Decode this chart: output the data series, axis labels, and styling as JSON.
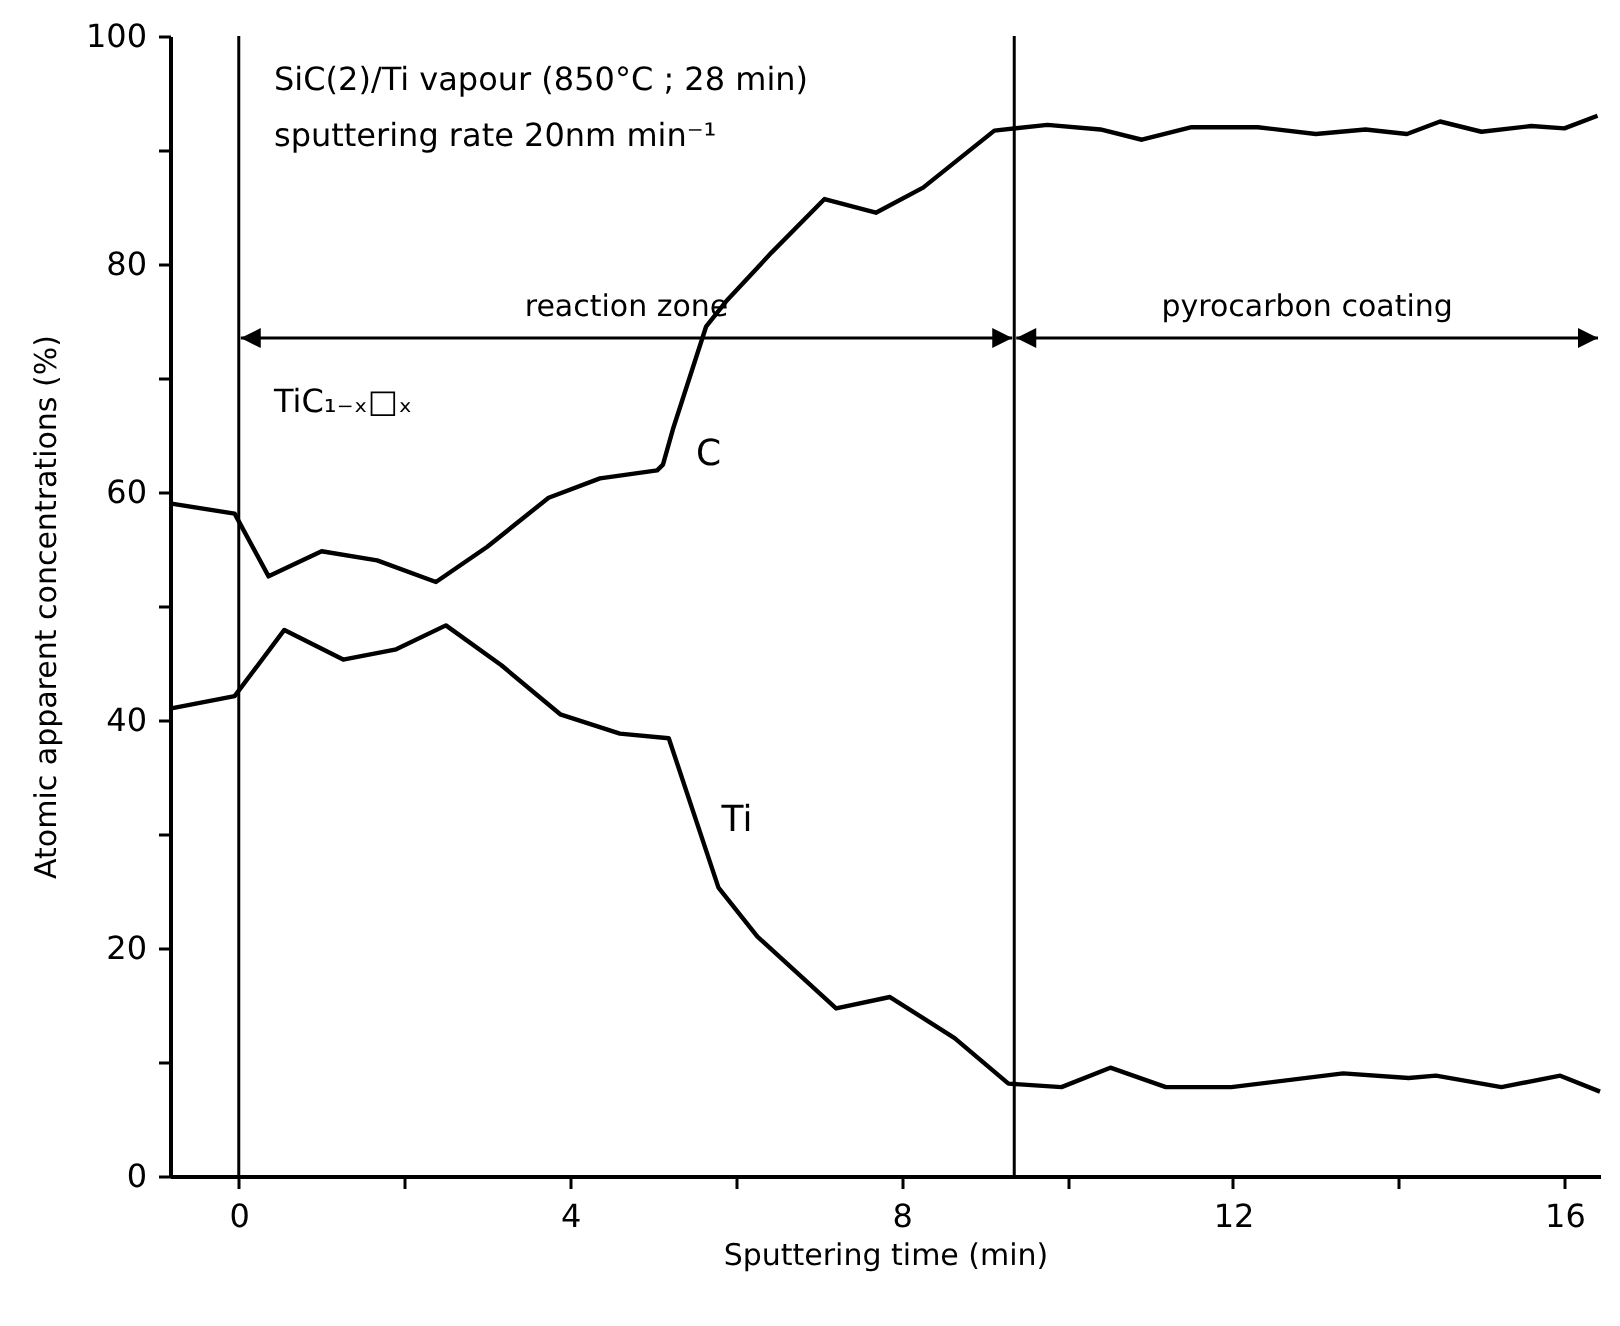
{
  "chart_data": {
    "type": "line",
    "xlabel": "Sputtering time (min)",
    "ylabel": "Atomic apparent concentrations (%)",
    "annotations": [
      "SiC(2)/Ti vapour (850°C ; 28 min)",
      "sputtering rate  20nm min⁻¹",
      "TiC₁₋ₓ□ₓ",
      "reaction zone",
      "pyrocarbon coating"
    ],
    "series": [
      {
        "name": "C",
        "color": "#000000",
        "x": [
          -0.83,
          -0.05,
          0.36,
          1.0,
          1.67,
          2.38,
          3.0,
          3.74,
          4.36,
          5.05,
          5.12,
          5.24,
          5.64,
          5.88,
          6.43,
          7.07,
          7.69,
          8.26,
          9.12,
          9.76,
          10.4,
          10.9,
          11.5,
          12.3,
          13.0,
          13.6,
          14.1,
          14.5,
          15.0,
          15.6,
          16.0,
          16.4
        ],
        "values": [
          59.0,
          58.1,
          52.6,
          54.8,
          54.0,
          52.1,
          55.2,
          59.5,
          61.2,
          61.9,
          62.4,
          65.5,
          74.5,
          76.7,
          81.0,
          85.7,
          84.5,
          86.7,
          91.7,
          92.2,
          91.8,
          90.9,
          92.0,
          92.0,
          91.4,
          91.8,
          91.4,
          92.5,
          91.6,
          92.1,
          91.9,
          93.0
        ]
      },
      {
        "name": "Ti",
        "color": "#000000",
        "x": [
          -0.83,
          -0.05,
          0.55,
          1.26,
          1.9,
          2.5,
          3.17,
          3.88,
          4.6,
          5.19,
          5.79,
          6.26,
          7.21,
          7.86,
          8.64,
          9.29,
          9.93,
          10.52,
          11.19,
          11.98,
          13.33,
          14.12,
          14.45,
          15.24,
          15.95,
          16.43
        ],
        "values": [
          41.0,
          42.1,
          47.9,
          45.3,
          46.2,
          48.3,
          44.8,
          40.5,
          38.8,
          38.4,
          25.3,
          21.0,
          14.7,
          15.7,
          12.1,
          8.1,
          7.8,
          9.5,
          7.8,
          7.8,
          9.0,
          8.6,
          8.8,
          7.8,
          8.8,
          7.4
        ]
      }
    ],
    "ref_lines": [
      {
        "axis": "x",
        "value": 0
      },
      {
        "axis": "x",
        "value": 9.36
      }
    ],
    "xlim": [
      -0.83,
      16.43
    ],
    "ylim": [
      0,
      100
    ],
    "xticks": [
      0,
      {
        "value": 2,
        "label": null
      },
      4,
      {
        "value": 6,
        "label": null
      },
      8,
      {
        "value": 10,
        "label": null
      },
      12,
      {
        "value": 14,
        "label": null
      },
      16
    ],
    "yticks": [
      0,
      {
        "value": 10,
        "label": null
      },
      20,
      {
        "value": 30,
        "label": null
      },
      40,
      {
        "value": 50,
        "label": null
      },
      60,
      {
        "value": 70,
        "label": null
      },
      80,
      {
        "value": 90,
        "label": null
      },
      100
    ],
    "grid": false,
    "marker": "none",
    "line_style": "solid"
  }
}
